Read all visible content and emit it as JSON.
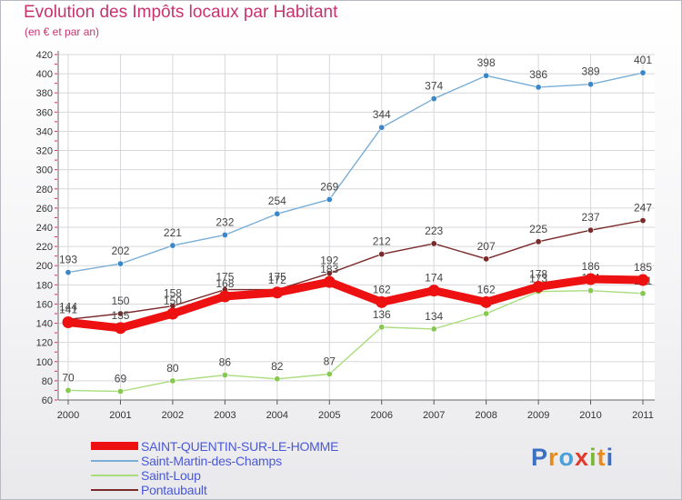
{
  "title": "Evolution des Impôts locaux par Habitant",
  "subtitle": "(en € et par an)",
  "logo_text": "Proxiti",
  "chart_data": {
    "type": "line",
    "x": [
      2000,
      2001,
      2002,
      2003,
      2004,
      2005,
      2006,
      2007,
      2008,
      2009,
      2010,
      2011
    ],
    "ylim": [
      60,
      420
    ],
    "yticks": [
      60,
      80,
      100,
      120,
      140,
      160,
      180,
      200,
      220,
      240,
      260,
      280,
      300,
      320,
      340,
      360,
      380,
      400,
      420
    ],
    "grid": true,
    "legend_position": "bottom-left",
    "series": [
      {
        "name": "Saint-Martin-des-Champs",
        "color": "#7aaed6",
        "marker": "#3b87c8",
        "values": [
          193,
          202,
          221,
          232,
          254,
          269,
          344,
          374,
          398,
          386,
          389,
          401
        ]
      },
      {
        "name": "Pontaubault",
        "color": "#7a2a2a",
        "marker": "#7a2a2a",
        "values": [
          144,
          150,
          158,
          175,
          175,
          192,
          212,
          223,
          207,
          225,
          237,
          247
        ]
      },
      {
        "name": "Saint-Loup",
        "color": "#a8dc7c",
        "marker": "#86c850",
        "values": [
          70,
          69,
          80,
          86,
          82,
          87,
          136,
          134,
          150,
          173,
          174,
          171
        ]
      },
      {
        "name": "SAINT-QUENTIN-SUR-LE-HOMME",
        "color": "#ee1111",
        "marker": "#ee1111",
        "values": [
          141,
          135,
          150,
          168,
          172,
          183,
          162,
          174,
          162,
          178,
          186,
          185
        ]
      }
    ],
    "legend_order": [
      "SAINT-QUENTIN-SUR-LE-HOMME",
      "Saint-Martin-des-Champs",
      "Saint-Loup",
      "Pontaubault"
    ]
  }
}
